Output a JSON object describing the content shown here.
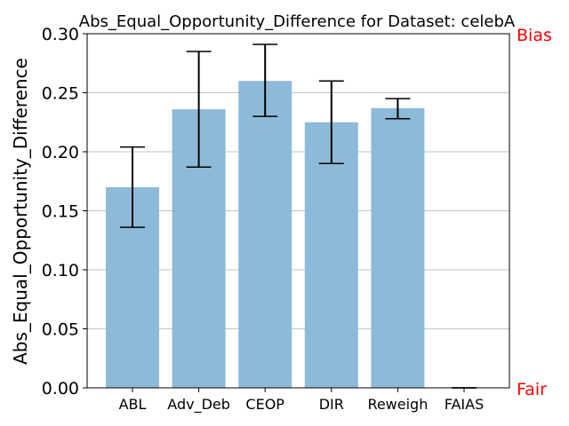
{
  "chart_data": {
    "type": "bar",
    "title": "Abs_Equal_Opportunity_Difference for Dataset: celebA",
    "xlabel": "",
    "ylabel": "Abs_Equal_Opportunity_Difference",
    "categories": [
      "ABL",
      "Adv_Deb",
      "CEOP",
      "DIR",
      "Reweigh",
      "FAIAS"
    ],
    "values": [
      0.17,
      0.236,
      0.26,
      0.225,
      0.237,
      0.0
    ],
    "error_low": [
      0.136,
      0.187,
      0.23,
      0.19,
      0.228,
      0.0
    ],
    "error_high": [
      0.204,
      0.285,
      0.291,
      0.26,
      0.245,
      0.0
    ],
    "ylim": [
      0,
      0.3
    ],
    "yticks": [
      "0.00",
      "0.05",
      "0.10",
      "0.15",
      "0.20",
      "0.25",
      "0.30"
    ],
    "grid": "horizontal",
    "bar_color": "#8ebad9",
    "top_marker": "Bias",
    "bottom_marker": "Fair",
    "marker_color": "#ff0000"
  }
}
